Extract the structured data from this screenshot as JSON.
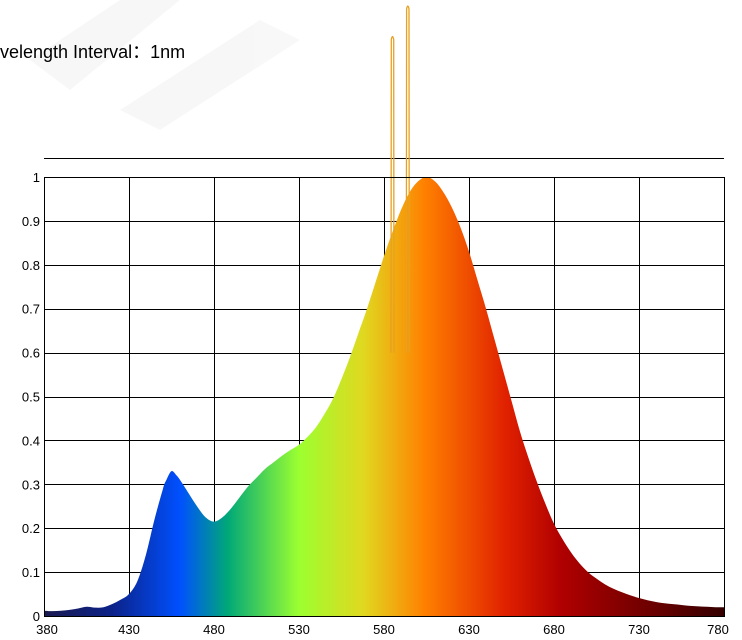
{
  "header": {
    "interval_label": "velength Interval：1nm"
  },
  "chart_data": {
    "type": "area",
    "title": "",
    "xlabel": "",
    "ylabel": "",
    "xlim": [
      380,
      780
    ],
    "ylim": [
      0,
      1
    ],
    "grid": true,
    "legend": "none",
    "x_ticks": [
      "380",
      "430",
      "480",
      "530",
      "580",
      "630",
      "680",
      "730",
      "780"
    ],
    "y_ticks": [
      "0",
      "0.1",
      "0.2",
      "0.3",
      "0.4",
      "0.5",
      "0.6",
      "0.7",
      "0.8",
      "0.9",
      "1"
    ],
    "spectrum": {
      "x": [
        380,
        385,
        390,
        395,
        400,
        405,
        410,
        415,
        420,
        425,
        430,
        435,
        440,
        445,
        450,
        452,
        455,
        458,
        460,
        465,
        470,
        475,
        480,
        485,
        490,
        495,
        500,
        505,
        510,
        515,
        520,
        525,
        530,
        535,
        540,
        545,
        550,
        555,
        560,
        565,
        570,
        575,
        580,
        585,
        590,
        595,
        600,
        605,
        610,
        615,
        620,
        625,
        630,
        635,
        640,
        645,
        650,
        655,
        660,
        665,
        670,
        675,
        680,
        685,
        690,
        695,
        700,
        705,
        710,
        715,
        720,
        725,
        730,
        735,
        740,
        745,
        750,
        755,
        760,
        765,
        770,
        775,
        780
      ],
      "y": [
        0.012,
        0.011,
        0.012,
        0.014,
        0.017,
        0.021,
        0.019,
        0.02,
        0.027,
        0.037,
        0.05,
        0.08,
        0.14,
        0.22,
        0.29,
        0.31,
        0.33,
        0.32,
        0.31,
        0.28,
        0.25,
        0.225,
        0.215,
        0.225,
        0.245,
        0.27,
        0.295,
        0.315,
        0.335,
        0.35,
        0.365,
        0.378,
        0.39,
        0.408,
        0.43,
        0.46,
        0.495,
        0.54,
        0.59,
        0.645,
        0.7,
        0.76,
        0.82,
        0.875,
        0.925,
        0.965,
        0.99,
        1.0,
        0.99,
        0.965,
        0.93,
        0.885,
        0.83,
        0.765,
        0.7,
        0.63,
        0.56,
        0.49,
        0.42,
        0.36,
        0.305,
        0.255,
        0.21,
        0.175,
        0.145,
        0.12,
        0.1,
        0.085,
        0.072,
        0.062,
        0.054,
        0.047,
        0.041,
        0.036,
        0.032,
        0.029,
        0.027,
        0.025,
        0.023,
        0.022,
        0.021,
        0.02,
        0.02
      ]
    },
    "lines": [
      {
        "x": 585,
        "y": 1.32
      },
      {
        "x": 594,
        "y": 1.4
      }
    ],
    "colors": {
      "line": "#e8a020",
      "gradient": [
        "#1a1a50",
        "#0030c0",
        "#0070ff",
        "#00b070",
        "#7ff030",
        "#e8e020",
        "#ff8000",
        "#d01000",
        "#a00000",
        "#3a0000"
      ]
    }
  }
}
